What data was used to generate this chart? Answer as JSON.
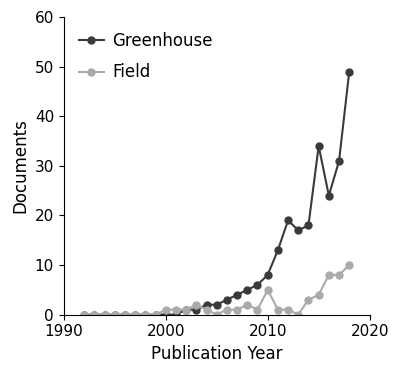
{
  "greenhouse_x": [
    1992,
    1993,
    1994,
    1995,
    1996,
    1997,
    1998,
    1999,
    2000,
    2001,
    2002,
    2003,
    2004,
    2005,
    2006,
    2007,
    2008,
    2009,
    2010,
    2011,
    2012,
    2013,
    2014,
    2015,
    2016,
    2017,
    2018
  ],
  "greenhouse_y": [
    0,
    0,
    0,
    0,
    0,
    0,
    0,
    0,
    0,
    0,
    1,
    1,
    2,
    2,
    3,
    4,
    5,
    6,
    8,
    13,
    19,
    17,
    18,
    34,
    24,
    31,
    49
  ],
  "field_x": [
    1992,
    1993,
    1994,
    1995,
    1996,
    1997,
    1998,
    1999,
    2000,
    2001,
    2002,
    2003,
    2004,
    2005,
    2006,
    2007,
    2008,
    2009,
    2010,
    2011,
    2012,
    2013,
    2014,
    2015,
    2016,
    2017,
    2018
  ],
  "field_y": [
    0,
    0,
    0,
    0,
    0,
    0,
    0,
    0,
    1,
    1,
    1,
    2,
    1,
    0,
    1,
    1,
    2,
    1,
    5,
    1,
    1,
    0,
    3,
    4,
    8,
    8,
    10
  ],
  "greenhouse_color": "#3a3a3a",
  "field_color": "#aaaaaa",
  "marker": "o",
  "markersize": 5,
  "linewidth": 1.5,
  "xlabel": "Publication Year",
  "ylabel": "Documents",
  "legend_greenhouse": "Greenhouse",
  "legend_field": "Field",
  "xlim": [
    1990,
    2020
  ],
  "ylim": [
    0,
    60
  ],
  "yticks": [
    0,
    10,
    20,
    30,
    40,
    50,
    60
  ],
  "xticks": [
    1990,
    2000,
    2010,
    2020
  ],
  "background_color": "#ffffff",
  "axis_fontsize": 12,
  "tick_fontsize": 11,
  "legend_fontsize": 12
}
